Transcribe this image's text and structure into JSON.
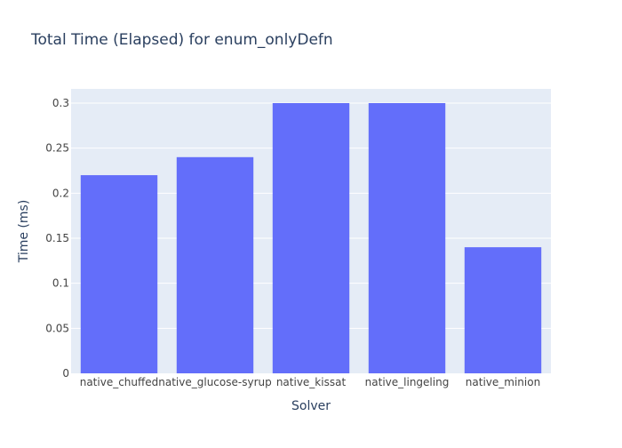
{
  "chart_data": {
    "type": "bar",
    "title": "Total Time (Elapsed) for enum_onlyDefn",
    "xlabel": "Solver",
    "ylabel": "Time (ms)",
    "categories": [
      "native_chuffed",
      "native_glucose-syrup",
      "native_kissat",
      "native_lingeling",
      "native_minion"
    ],
    "values": [
      0.22,
      0.24,
      0.3,
      0.3,
      0.14
    ],
    "ylim": [
      0,
      0.3
    ],
    "yticks": [
      0,
      0.05,
      0.1,
      0.15,
      0.2,
      0.25,
      0.3
    ],
    "ytick_labels": [
      "0",
      "0.05",
      "0.1",
      "0.15",
      "0.2",
      "0.25",
      "0.3"
    ],
    "grid": true,
    "legend": "none",
    "bar_color": "#636efa",
    "plot_bg_color": "#e5ecf6",
    "text_color": "#2a3f5f",
    "tick_color": "#444444"
  }
}
